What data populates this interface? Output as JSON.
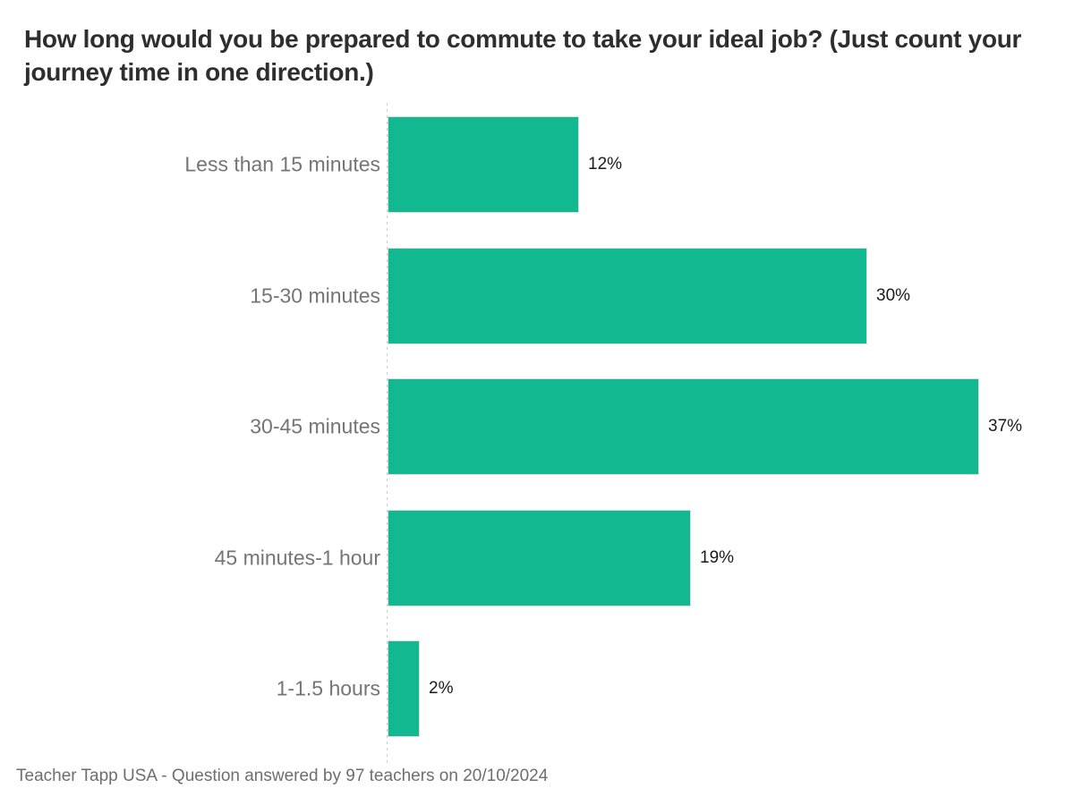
{
  "chart_data": {
    "type": "bar",
    "orientation": "horizontal",
    "title": "How long would you be prepared to commute to take your ideal job? (Just count your journey time in one direction.)",
    "categories": [
      "Less than 15 minutes",
      "15-30 minutes",
      "30-45 minutes",
      "45 minutes-1 hour",
      "1-1.5 hours"
    ],
    "values": [
      12,
      30,
      37,
      19,
      2
    ],
    "value_labels": [
      "12%",
      "30%",
      "37%",
      "19%",
      "2%"
    ],
    "xlim": [
      0,
      37
    ],
    "grid": false,
    "legend": "none",
    "footer": "Teacher Tapp USA - Question answered by 97 teachers on 20/10/2024"
  },
  "colors": {
    "bar": "#12b890",
    "bar_border": "#dcdcdc",
    "title_text": "#2e2e2e",
    "category_text": "#757575",
    "value_text": "#1a1a1a",
    "footer_text": "#6e6e6e",
    "axis_line": "#cccccc",
    "background": "#ffffff"
  }
}
